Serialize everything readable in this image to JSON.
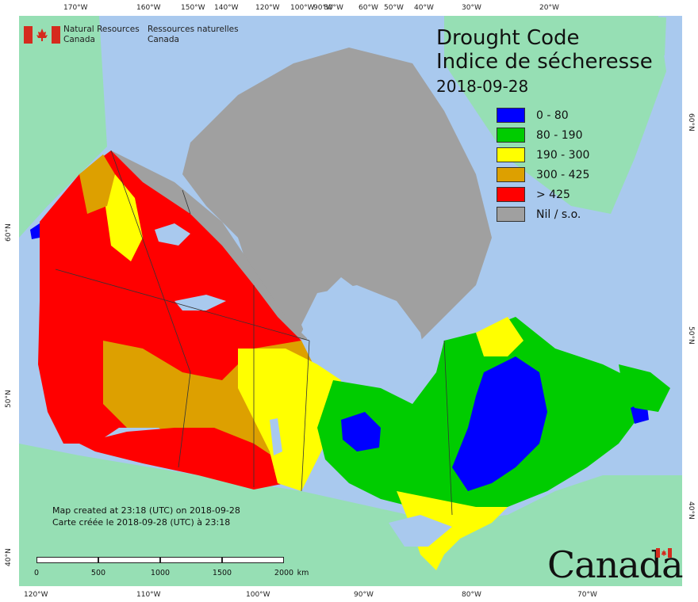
{
  "agency": {
    "name_en_line1": "Natural Resources",
    "name_en_line2": "Canada",
    "name_fr_line1": "Ressources naturelles",
    "name_fr_line2": "Canada"
  },
  "title": {
    "en": "Drought Code",
    "fr": "Indice de sécheresse",
    "date": "2018-09-28"
  },
  "legend": [
    {
      "label": "0 - 80",
      "color": "#0000ff"
    },
    {
      "label": "80 - 190",
      "color": "#00cc00"
    },
    {
      "label": "190 - 300",
      "color": "#ffff00"
    },
    {
      "label": "300 - 425",
      "color": "#dda000"
    },
    {
      "label": "> 425",
      "color": "#ff0000"
    },
    {
      "label": "Nil / s.o.",
      "color": "#a0a0a0"
    }
  ],
  "credits": {
    "en": "Map created at 23:18 (UTC) on 2018-09-28",
    "fr": "Carte créée le 2018-09-28 (UTC) à 23:18"
  },
  "scale": {
    "ticks": [
      "0",
      "500",
      "1000",
      "1500",
      "2000"
    ],
    "unit": "km"
  },
  "graticule": {
    "top_longitudes": [
      "170°W",
      "160°W",
      "150°W",
      "140°W",
      "120°W",
      "100°W",
      "90°W",
      "80°W",
      "60°W",
      "50°W",
      "40°W",
      "30°W",
      "20°W"
    ],
    "bottom_longitudes": [
      "120°W",
      "110°W",
      "100°W",
      "90°W",
      "80°W",
      "70°W"
    ],
    "left_latitudes": [
      "60°N",
      "50°N",
      "40°N"
    ],
    "right_latitudes": [
      "60°N",
      "50°N",
      "40°N"
    ]
  },
  "wordmark": "Canada",
  "colors": {
    "ocean": "#a9c9ee",
    "land_outside": "#96dfb4",
    "no_data": "#a0a0a0",
    "water_lakes": "#a9c9ee"
  }
}
